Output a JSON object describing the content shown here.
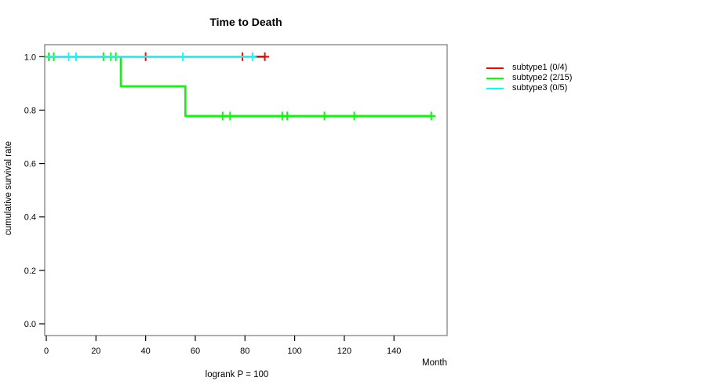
{
  "title": "Time to Death",
  "chart_data": {
    "type": "line",
    "subtype": "kaplan-meier-step",
    "title": "Time to Death",
    "xlabel": "Month",
    "ylabel": "cumulative survival rate",
    "footnote": "logrank P = 100",
    "xlim": [
      0,
      150
    ],
    "ylim": [
      0.0,
      1.0
    ],
    "xticks": [
      0,
      20,
      40,
      60,
      80,
      100,
      120,
      140
    ],
    "yticks": [
      0.0,
      0.2,
      0.4,
      0.6,
      0.8,
      1.0
    ],
    "grid": false,
    "legend_position": "right-outside",
    "frame_color": "#777777",
    "series": [
      {
        "name": "subtype1 (0/4)",
        "color": "#ff0000",
        "events": 0,
        "n": 4,
        "steps": [
          [
            0,
            1.0
          ],
          [
            88,
            1.0
          ]
        ],
        "censors": [
          [
            40,
            1.0
          ],
          [
            79,
            1.0
          ],
          [
            88,
            1.0
          ]
        ]
      },
      {
        "name": "subtype2 (2/15)",
        "color": "#00ff00",
        "events": 2,
        "n": 15,
        "steps": [
          [
            0,
            1.0
          ],
          [
            30,
            1.0
          ],
          [
            30,
            0.889
          ],
          [
            56,
            0.889
          ],
          [
            56,
            0.778
          ],
          [
            155,
            0.778
          ]
        ],
        "censors": [
          [
            1,
            1.0
          ],
          [
            3,
            1.0
          ],
          [
            23,
            1.0
          ],
          [
            26,
            1.0
          ],
          [
            28,
            1.0
          ],
          [
            71,
            0.778
          ],
          [
            74,
            0.778
          ],
          [
            95,
            0.778
          ],
          [
            97,
            0.778
          ],
          [
            112,
            0.778
          ],
          [
            124,
            0.778
          ],
          [
            155,
            0.778
          ]
        ]
      },
      {
        "name": "subtype3 (0/5)",
        "color": "#00ffff",
        "events": 0,
        "n": 5,
        "steps": [
          [
            0,
            1.0
          ],
          [
            84,
            1.0
          ]
        ],
        "censors": [
          [
            9,
            1.0
          ],
          [
            12,
            1.0
          ],
          [
            55,
            1.0
          ],
          [
            83,
            1.0
          ]
        ]
      }
    ]
  },
  "legend": {
    "items": [
      {
        "label": "subtype1 (0/4)",
        "color": "#ff0000"
      },
      {
        "label": "subtype2 (2/15)",
        "color": "#00ff00"
      },
      {
        "label": "subtype3 (0/5)",
        "color": "#00ffff"
      }
    ]
  }
}
